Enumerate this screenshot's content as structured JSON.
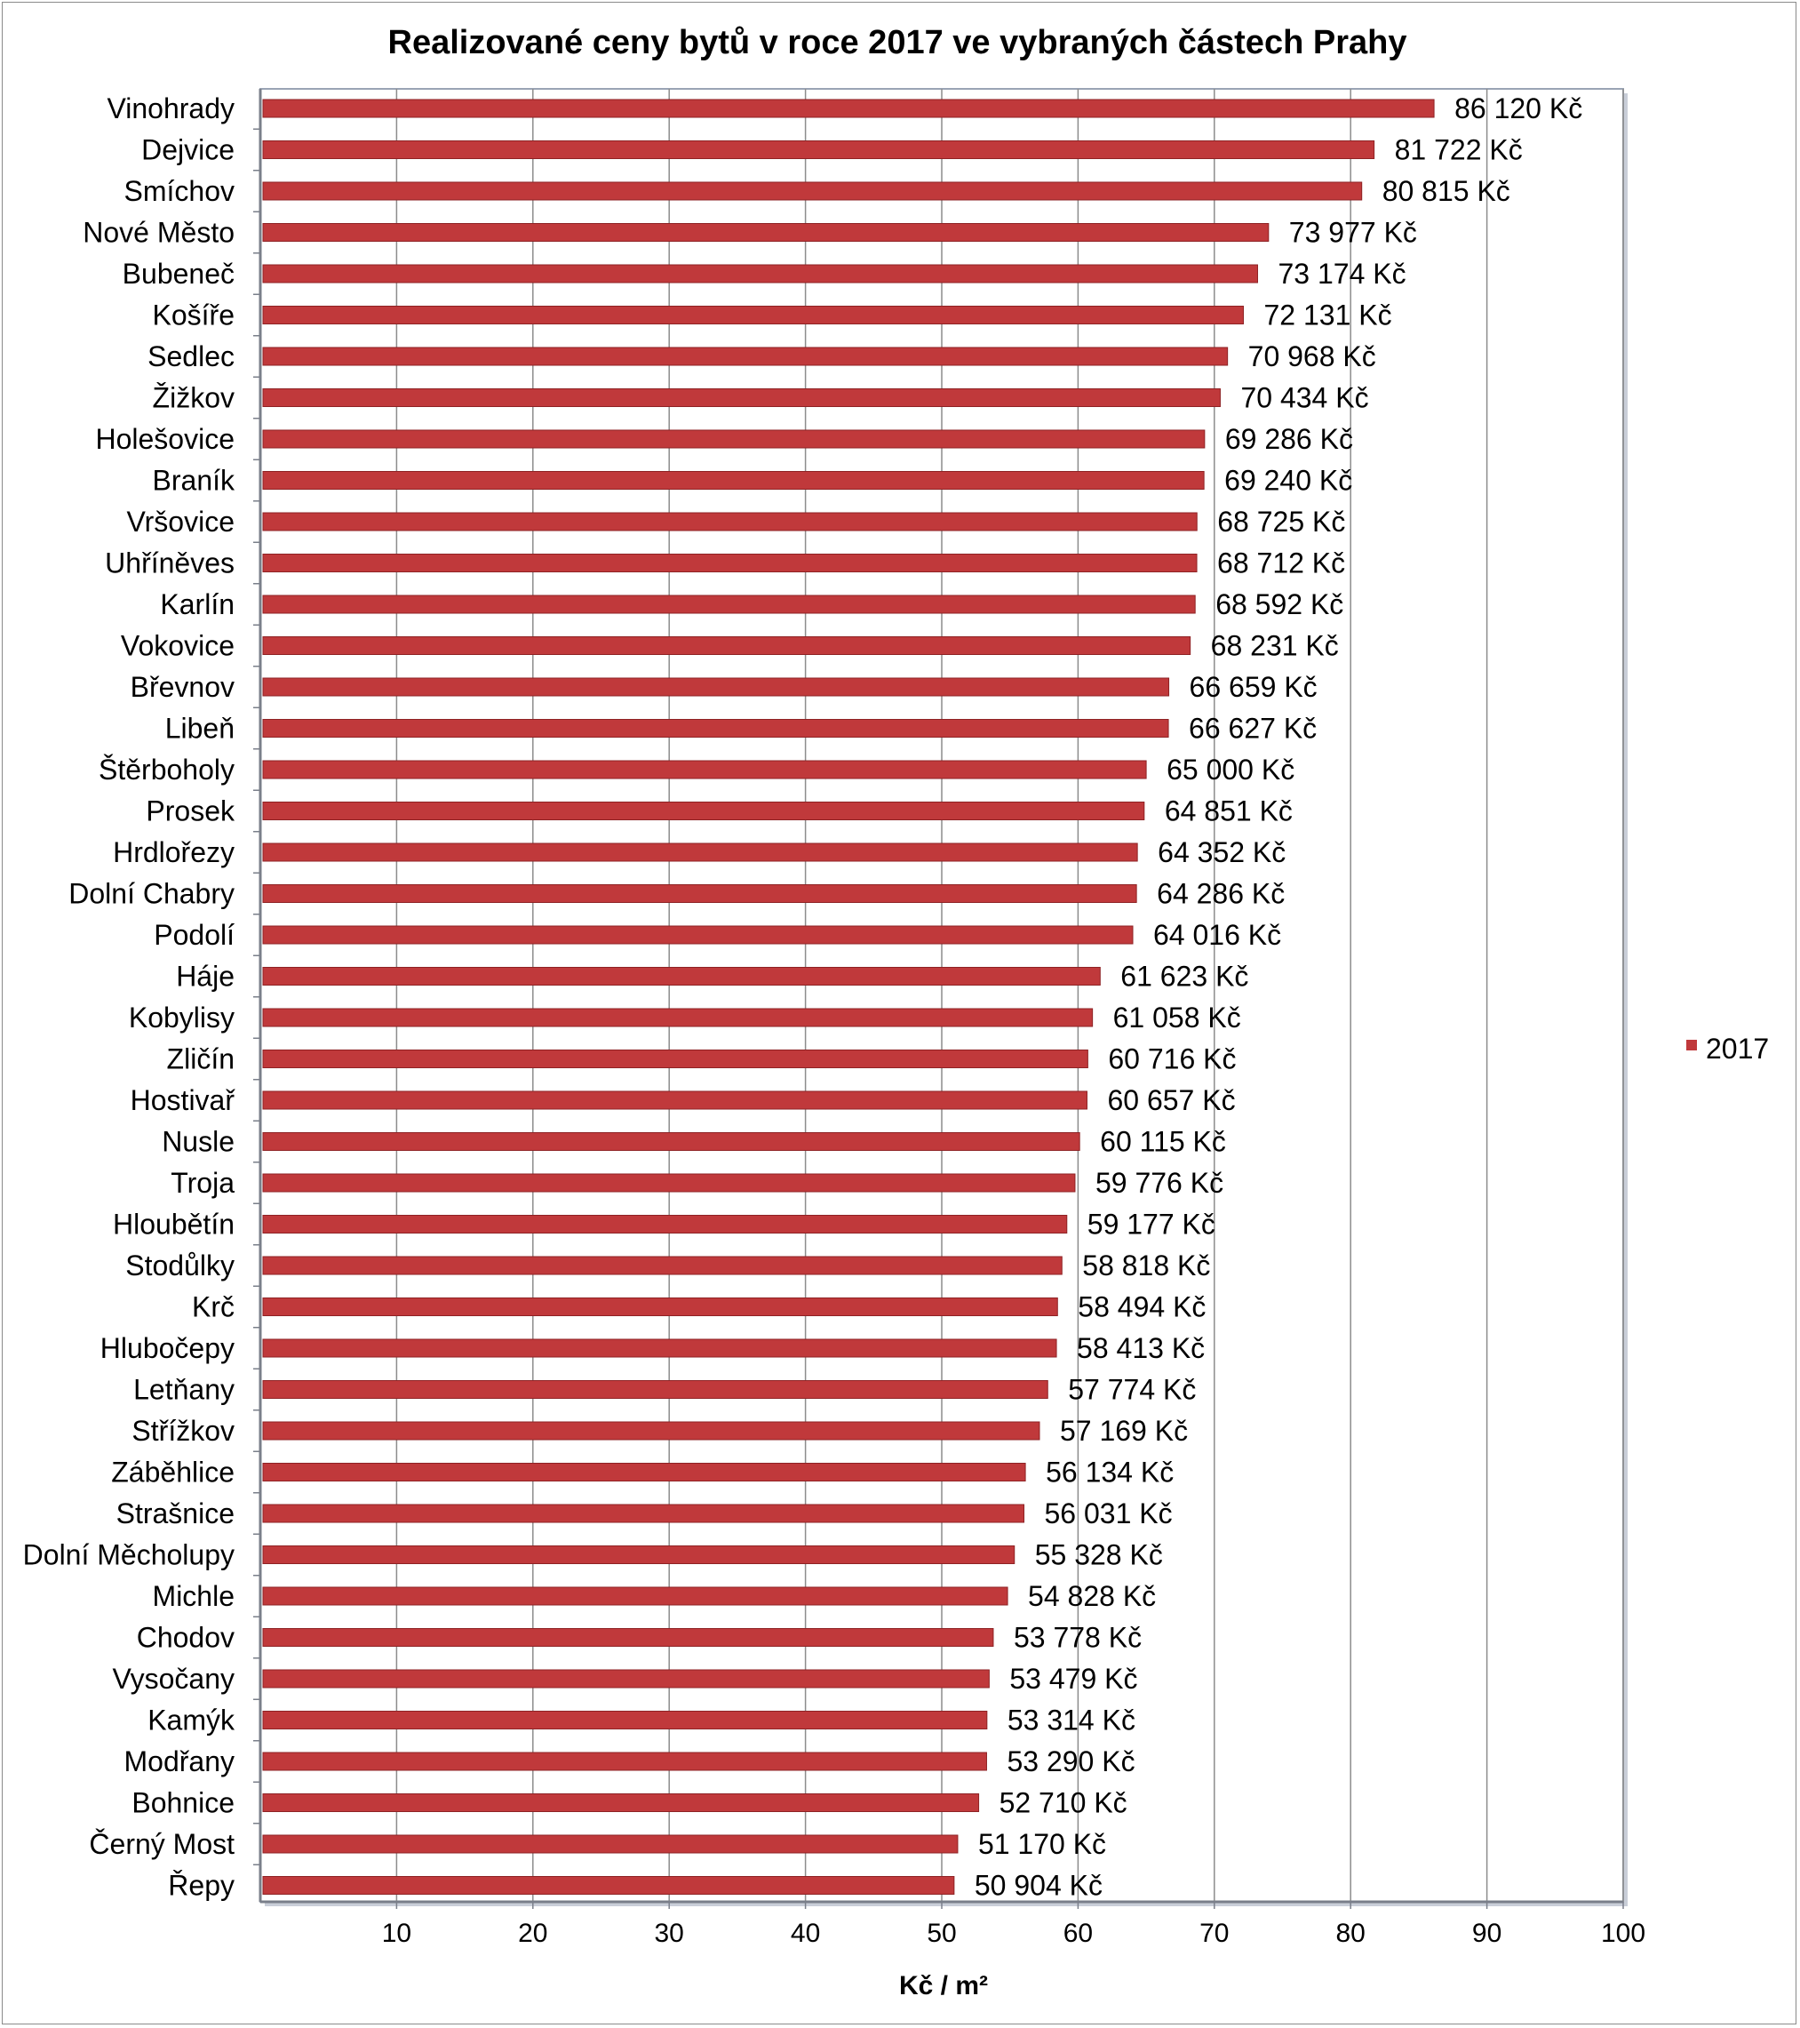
{
  "chart_data": {
    "type": "bar",
    "orientation": "horizontal",
    "title": "Realizované ceny bytů v roce 2017 ve vybraných částech Prahy",
    "xlabel": "Kč / m²",
    "ylabel": "",
    "xlim": [
      0,
      100
    ],
    "xticks": [
      10,
      20,
      30,
      40,
      50,
      60,
      70,
      80,
      90,
      100
    ],
    "grid": "vertical",
    "legend_position": "right",
    "bar_color": "#c0393b",
    "categories": [
      "Vinohrady",
      "Dejvice",
      "Smíchov",
      "Nové Město",
      "Bubeneč",
      "Košíře",
      "Sedlec",
      "Žižkov",
      "Holešovice",
      "Braník",
      "Vršovice",
      "Uhříněves",
      "Karlín",
      "Vokovice",
      "Břevnov",
      "Libeň",
      "Štěrboholy",
      "Prosek",
      "Hrdlořezy",
      "Dolní Chabry",
      "Podolí",
      "Háje",
      "Kobylisy",
      "Zličín",
      "Hostivař",
      "Nusle",
      "Troja",
      "Hloubětín",
      "Stodůlky",
      "Krč",
      "Hlubočepy",
      "Letňany",
      "Střížkov",
      "Záběhlice",
      "Strašnice",
      "Dolní Měcholupy",
      "Michle",
      "Chodov",
      "Vysočany",
      "Kamýk",
      "Modřany",
      "Bohnice",
      "Černý Most",
      "Řepy"
    ],
    "series": [
      {
        "name": "2017",
        "values": [
          86120,
          81722,
          80815,
          73977,
          73174,
          72131,
          70968,
          70434,
          69286,
          69240,
          68725,
          68712,
          68592,
          68231,
          66659,
          66627,
          65000,
          64851,
          64352,
          64286,
          64016,
          61623,
          61058,
          60716,
          60657,
          60115,
          59776,
          59177,
          58818,
          58494,
          58413,
          57774,
          57169,
          56134,
          56031,
          55328,
          54828,
          53778,
          53479,
          53314,
          53290,
          52710,
          51170,
          50904
        ],
        "labels": [
          "86 120 Kč",
          "81 722 Kč",
          "80 815 Kč",
          "73 977 Kč",
          "73 174 Kč",
          "72 131 Kč",
          "70 968 Kč",
          "70 434 Kč",
          "69 286 Kč",
          "69 240 Kč",
          "68 725 Kč",
          "68 712 Kč",
          "68 592 Kč",
          "68 231 Kč",
          "66 659 Kč",
          "66 627 Kč",
          "65 000 Kč",
          "64 851 Kč",
          "64 352 Kč",
          "64 286 Kč",
          "64 016 Kč",
          "61 623 Kč",
          "61 058 Kč",
          "60 716 Kč",
          "60 657 Kč",
          "60 115 Kč",
          "59 776 Kč",
          "59 177 Kč",
          "58 818 Kč",
          "58 494 Kč",
          "58 413 Kč",
          "57 774 Kč",
          "57 169 Kč",
          "56 134 Kč",
          "56 031 Kč",
          "55 328 Kč",
          "54 828 Kč",
          "53 778 Kč",
          "53 479 Kč",
          "53 314 Kč",
          "53 290 Kč",
          "52 710 Kč",
          "51 170 Kč",
          "50 904 Kč"
        ]
      }
    ]
  }
}
